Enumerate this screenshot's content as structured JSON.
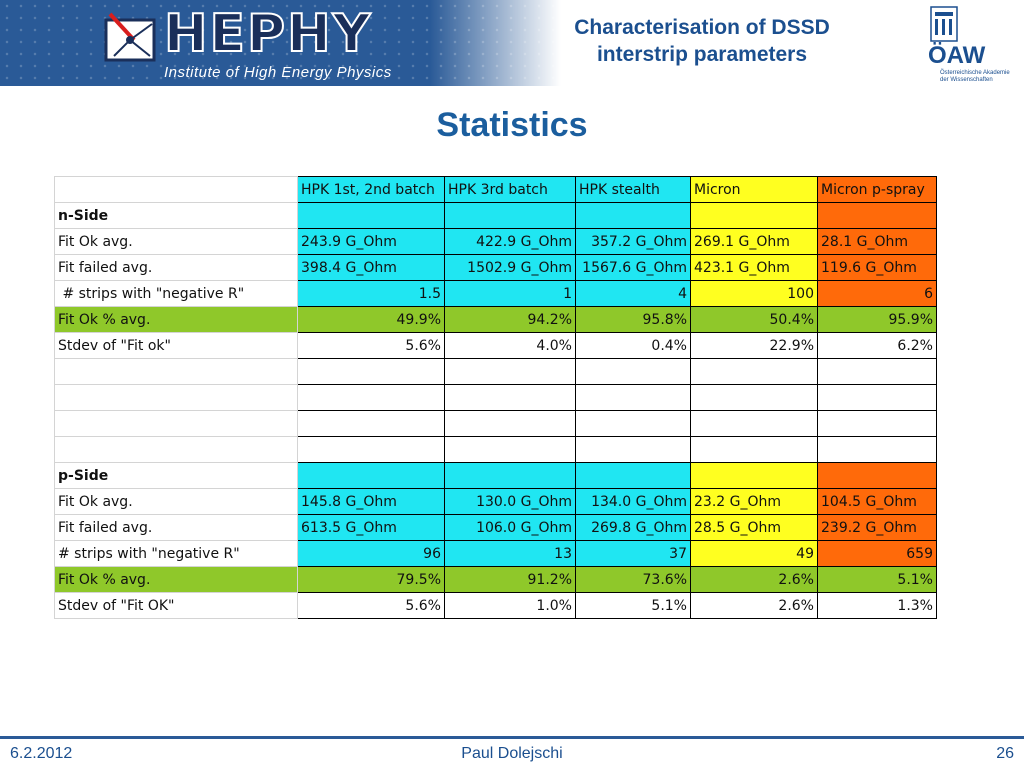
{
  "header": {
    "logo_text": "HEPHY",
    "logo_subtitle": "Institute of High Energy Physics",
    "title_line1": "Characterisation of DSSD",
    "title_line2": "interstrip parameters",
    "right_logo_text": "ÖAW",
    "right_logo_subtitle": "Österreichische Akademie der Wissenschaften"
  },
  "slide_title": "Statistics",
  "table": {
    "columns": [
      "HPK  1st, 2nd batch",
      "HPK 3rd batch",
      "HPK stealth",
      "Micron",
      "Micron p-spray"
    ],
    "n_side": {
      "label": "n-Side",
      "fit_ok_label": "Fit Ok avg.",
      "fit_ok": [
        "243.9 G_Ohm",
        "422.9 G_Ohm",
        "357.2 G_Ohm",
        "269.1 G_Ohm",
        "28.1 G_Ohm"
      ],
      "fit_failed_label": "Fit failed avg.",
      "fit_failed": [
        "398.4 G_Ohm",
        "1502.9 G_Ohm",
        "1567.6 G_Ohm",
        "423.1 G_Ohm",
        "119.6 G_Ohm"
      ],
      "neg_r_label": " # strips with \"negative R\"",
      "neg_r": [
        "1.5",
        "1",
        "4",
        "100",
        "6"
      ],
      "fit_ok_pct_label": "Fit Ok % avg.",
      "fit_ok_pct": [
        "49.9%",
        "94.2%",
        "95.8%",
        "50.4%",
        "95.9%"
      ],
      "stdev_label": "Stdev of \"Fit ok\"",
      "stdev": [
        "5.6%",
        "4.0%",
        "0.4%",
        "22.9%",
        "6.2%"
      ]
    },
    "p_side": {
      "label": "p-Side",
      "fit_ok_label": "Fit Ok avg.",
      "fit_ok": [
        "145.8 G_Ohm",
        "130.0 G_Ohm",
        "134.0 G_Ohm",
        "23.2 G_Ohm",
        "104.5 G_Ohm"
      ],
      "fit_failed_label": "Fit failed avg.",
      "fit_failed": [
        "613.5 G_Ohm",
        "106.0 G_Ohm",
        "269.8 G_Ohm",
        "28.5 G_Ohm",
        "239.2 G_Ohm"
      ],
      "neg_r_label": "# strips with \"negative R\"",
      "neg_r": [
        "96",
        "13",
        "37",
        "49",
        "659"
      ],
      "fit_ok_pct_label": "Fit Ok % avg.",
      "fit_ok_pct": [
        "79.5%",
        "91.2%",
        "73.6%",
        "2.6%",
        "5.1%"
      ],
      "stdev_label": "Stdev of \"Fit OK\"",
      "stdev": [
        "5.6%",
        "1.0%",
        "5.1%",
        "2.6%",
        "1.3%"
      ]
    }
  },
  "footer": {
    "date": "6.2.2012",
    "author": "Paul Dolejschi",
    "page": "26"
  },
  "colors": {
    "cyan": "#20e6f2",
    "yellow": "#ffff20",
    "orange": "#ff6a0a",
    "green": "#8fc82a",
    "title_blue": "#1b5e9e"
  }
}
